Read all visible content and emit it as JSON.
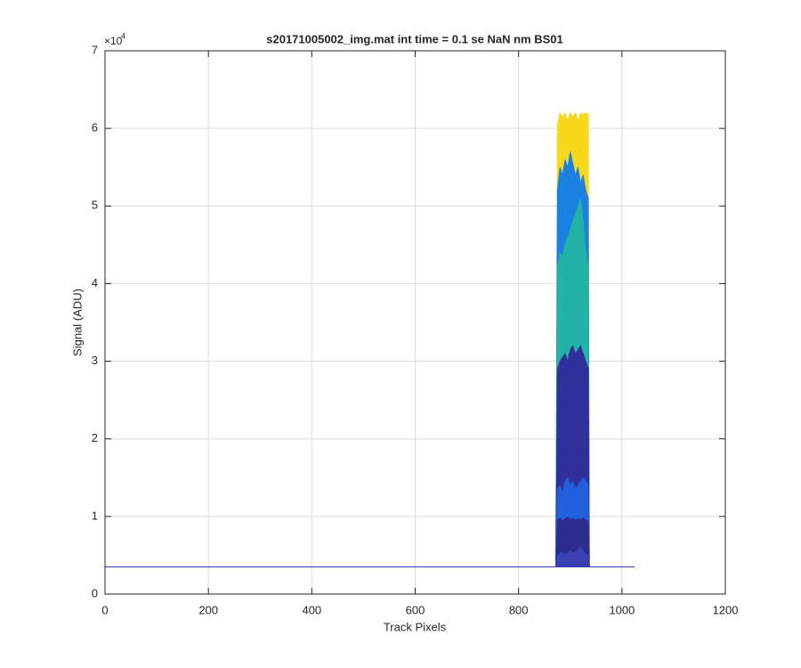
{
  "chart_data": {
    "type": "area",
    "title": "s20171005002_img.mat int time = 0.1 se  NaN nm BS01",
    "x_label": "Track Pixels",
    "y_label": "Signal (ADU)",
    "y_multiplier": "×10",
    "y_multiplier_exponent": "4",
    "x": [
      1,
      872,
      875,
      880,
      885,
      890,
      895,
      900,
      905,
      910,
      915,
      920,
      925,
      930,
      935,
      937,
      1024
    ],
    "series": [
      {
        "color": "#f9d71c",
        "values": [
          3500,
          3500,
          60500,
          62000,
          61500,
          62000,
          61000,
          62000,
          61500,
          62000,
          61000,
          62000,
          61800,
          62000,
          61800,
          3500,
          3500
        ]
      },
      {
        "color": "#1a80e2",
        "values": [
          3500,
          3500,
          52000,
          55000,
          54000,
          56000,
          55000,
          57000,
          55500,
          54000,
          55000,
          53000,
          54000,
          52000,
          51000,
          3500,
          3500
        ]
      },
      {
        "color": "#22b2a6",
        "values": [
          3500,
          3500,
          42000,
          44000,
          43500,
          45000,
          46000,
          47000,
          48000,
          49000,
          50000,
          51000,
          48000,
          44000,
          42000,
          3500,
          3500
        ]
      },
      {
        "color": "#2f309a",
        "values": [
          3500,
          3500,
          29000,
          30000,
          30500,
          31000,
          30000,
          31500,
          32000,
          31000,
          31500,
          32000,
          31000,
          30000,
          29000,
          3500,
          3500
        ]
      },
      {
        "color": "#225fdc",
        "values": [
          3500,
          3500,
          13500,
          14000,
          13000,
          14500,
          15000,
          14000,
          14500,
          13500,
          14000,
          14500,
          15000,
          14500,
          14000,
          3500,
          3500
        ]
      },
      {
        "color": "#2b2c8c",
        "values": [
          3500,
          3500,
          9500,
          9800,
          9400,
          9700,
          9900,
          9600,
          9800,
          9500,
          9700,
          9600,
          9800,
          9500,
          9400,
          3500,
          3500
        ]
      },
      {
        "color": "#3a3fb2",
        "values": [
          3500,
          3500,
          5000,
          5200,
          5400,
          5100,
          5300,
          5600,
          5200,
          5400,
          5800,
          6200,
          5600,
          5200,
          5000,
          3500,
          3500
        ]
      }
    ],
    "xlim": [
      0,
      1200
    ],
    "xticks": [
      0,
      200,
      400,
      600,
      800,
      1000,
      1200
    ],
    "ylim": [
      0,
      70000
    ],
    "yticks": [
      {
        "value": 0,
        "label": "0"
      },
      {
        "value": 10000,
        "label": "1"
      },
      {
        "value": 20000,
        "label": "2"
      },
      {
        "value": 30000,
        "label": "3"
      },
      {
        "value": 40000,
        "label": "4"
      },
      {
        "value": 50000,
        "label": "5"
      },
      {
        "value": 60000,
        "label": "6"
      },
      {
        "value": 70000,
        "label": "7"
      }
    ],
    "grid": true
  }
}
